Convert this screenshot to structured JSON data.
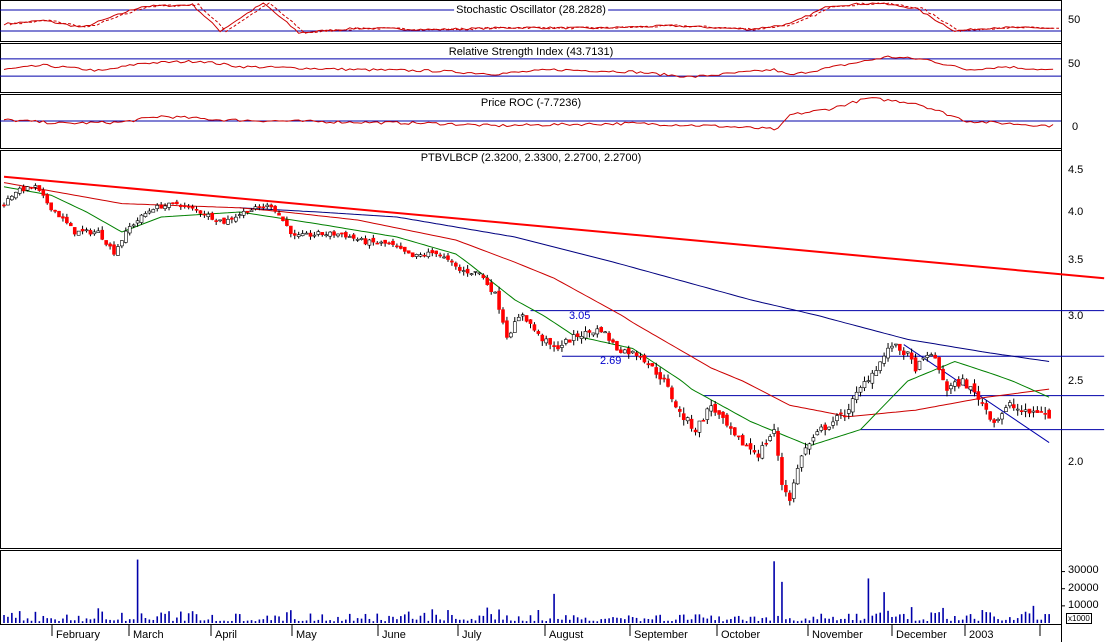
{
  "panels": {
    "stochastic": {
      "title": "Stochastic Oscillator (28.2828)",
      "ticks": [
        "50"
      ]
    },
    "rsi": {
      "title": "Relative Strength Index (43.7131)",
      "ticks": [
        "50"
      ]
    },
    "roc": {
      "title": "Price ROC (-7.7236)",
      "ticks": [
        "0"
      ]
    },
    "price": {
      "title": "PTBVLBCP (2.3200, 2.3300, 2.2700, 2.2700)",
      "ticks": [
        "4.5",
        "4.0",
        "3.5",
        "3.0",
        "2.5",
        "2.0"
      ]
    },
    "volume": {
      "ticks": [
        "30000",
        "20000",
        "10000"
      ],
      "unit": "x1000"
    }
  },
  "annotations": {
    "level_high": "3.05",
    "level_low": "2.69"
  },
  "months": [
    "February",
    "March",
    "April",
    "May",
    "June",
    "July",
    "August",
    "September",
    "October",
    "November",
    "December",
    "2003"
  ],
  "colors": {
    "up": "#ffffff",
    "down": "#ff0000",
    "wick": "#000000",
    "volume": "#0000aa",
    "ma_short": "#008000",
    "ma_mid": "#cc0000",
    "ma_long": "#000080",
    "trendline": "#ff0000",
    "level": "#0000aa",
    "indicator": "#cc0000"
  },
  "chart_data": {
    "type": "candlestick",
    "symbol": "PTBVLBCP",
    "last": {
      "open": 2.32,
      "high": 2.33,
      "low": 2.27,
      "close": 2.27
    },
    "ylim": [
      1.6,
      4.6
    ],
    "months": [
      "February",
      "March",
      "April",
      "May",
      "June",
      "July",
      "August",
      "September",
      "October",
      "November",
      "December",
      "2003"
    ],
    "close_path": [
      [
        0,
        4.1
      ],
      [
        3,
        4.25
      ],
      [
        8,
        4.3
      ],
      [
        12,
        4.05
      ],
      [
        18,
        3.8
      ],
      [
        24,
        3.8
      ],
      [
        28,
        3.6
      ],
      [
        32,
        3.85
      ],
      [
        38,
        4.05
      ],
      [
        44,
        4.1
      ],
      [
        50,
        4.0
      ],
      [
        56,
        3.9
      ],
      [
        62,
        4.02
      ],
      [
        68,
        4.08
      ],
      [
        74,
        3.75
      ],
      [
        80,
        3.78
      ],
      [
        86,
        3.78
      ],
      [
        92,
        3.7
      ],
      [
        98,
        3.68
      ],
      [
        104,
        3.55
      ],
      [
        110,
        3.6
      ],
      [
        116,
        3.42
      ],
      [
        121,
        3.4
      ],
      [
        125,
        3.2
      ],
      [
        128,
        2.85
      ],
      [
        132,
        3.02
      ],
      [
        136,
        2.85
      ],
      [
        140,
        2.75
      ],
      [
        146,
        2.85
      ],
      [
        152,
        2.9
      ],
      [
        156,
        2.75
      ],
      [
        162,
        2.7
      ],
      [
        168,
        2.5
      ],
      [
        172,
        2.3
      ],
      [
        176,
        2.2
      ],
      [
        180,
        2.35
      ],
      [
        186,
        2.15
      ],
      [
        192,
        2.05
      ],
      [
        196,
        2.2
      ],
      [
        198,
        1.85
      ],
      [
        200,
        1.75
      ],
      [
        203,
        2.05
      ],
      [
        208,
        2.2
      ],
      [
        214,
        2.3
      ],
      [
        218,
        2.45
      ],
      [
        222,
        2.6
      ],
      [
        226,
        2.78
      ],
      [
        230,
        2.7
      ],
      [
        232,
        2.6
      ],
      [
        236,
        2.72
      ],
      [
        240,
        2.45
      ],
      [
        244,
        2.5
      ],
      [
        248,
        2.4
      ],
      [
        252,
        2.25
      ],
      [
        256,
        2.35
      ],
      [
        260,
        2.3
      ],
      [
        264,
        2.32
      ],
      [
        266,
        2.27
      ]
    ],
    "ma_short": [
      [
        0,
        4.3
      ],
      [
        12,
        4.2
      ],
      [
        30,
        3.8
      ],
      [
        40,
        3.95
      ],
      [
        60,
        4.0
      ],
      [
        80,
        3.88
      ],
      [
        100,
        3.75
      ],
      [
        115,
        3.58
      ],
      [
        130,
        3.15
      ],
      [
        145,
        2.85
      ],
      [
        160,
        2.75
      ],
      [
        175,
        2.45
      ],
      [
        190,
        2.25
      ],
      [
        205,
        2.1
      ],
      [
        218,
        2.2
      ],
      [
        230,
        2.5
      ],
      [
        242,
        2.65
      ],
      [
        252,
        2.55
      ],
      [
        266,
        2.4
      ]
    ],
    "ma_mid": [
      [
        0,
        4.35
      ],
      [
        30,
        4.1
      ],
      [
        60,
        4.05
      ],
      [
        90,
        3.92
      ],
      [
        115,
        3.72
      ],
      [
        140,
        3.35
      ],
      [
        160,
        2.95
      ],
      [
        180,
        2.6
      ],
      [
        200,
        2.35
      ],
      [
        215,
        2.28
      ],
      [
        232,
        2.32
      ],
      [
        250,
        2.4
      ],
      [
        266,
        2.45
      ]
    ],
    "ma_long": [
      [
        60,
        4.05
      ],
      [
        100,
        3.95
      ],
      [
        130,
        3.75
      ],
      [
        160,
        3.45
      ],
      [
        190,
        3.15
      ],
      [
        210,
        2.98
      ],
      [
        230,
        2.82
      ],
      [
        250,
        2.72
      ],
      [
        266,
        2.65
      ]
    ],
    "trendline": [
      [
        0,
        4.42
      ],
      [
        280,
        3.35
      ]
    ],
    "levels": [
      {
        "value": 3.05,
        "from": 134,
        "to": 280,
        "label": "3.05"
      },
      {
        "value": 2.69,
        "from": 142,
        "to": 280,
        "label": "2.69"
      },
      {
        "value": 2.41,
        "from": 178,
        "to": 280
      },
      {
        "value": 2.2,
        "from": 218,
        "to": 280
      }
    ],
    "downtrend": [
      [
        229,
        2.78
      ],
      [
        266,
        2.12
      ]
    ],
    "volume_ylim": [
      0,
      42000
    ],
    "volume_spikes": [
      [
        34,
        37000
      ],
      [
        140,
        17000
      ],
      [
        196,
        36000
      ],
      [
        198,
        24000
      ],
      [
        220,
        26000
      ],
      [
        224,
        18000
      ],
      [
        262,
        10000
      ]
    ],
    "stochastic": {
      "last": 28.2828,
      "ticks": [
        50
      ],
      "ylim": [
        0,
        100
      ],
      "guides": [
        80,
        20
      ],
      "path": [
        [
          0,
          40
        ],
        [
          10,
          50
        ],
        [
          20,
          30
        ],
        [
          35,
          90
        ],
        [
          48,
          95
        ],
        [
          55,
          20
        ],
        [
          66,
          100
        ],
        [
          75,
          15
        ],
        [
          90,
          28
        ],
        [
          110,
          24
        ],
        [
          130,
          30
        ],
        [
          150,
          28
        ],
        [
          170,
          35
        ],
        [
          190,
          25
        ],
        [
          200,
          40
        ],
        [
          210,
          92
        ],
        [
          222,
          100
        ],
        [
          232,
          85
        ],
        [
          242,
          20
        ],
        [
          252,
          30
        ],
        [
          266,
          28
        ]
      ]
    },
    "rsi": {
      "last": 43.7131,
      "ticks": [
        50
      ],
      "ylim": [
        0,
        100
      ],
      "guides": [
        70,
        30
      ],
      "path": [
        [
          0,
          45
        ],
        [
          10,
          55
        ],
        [
          25,
          42
        ],
        [
          35,
          60
        ],
        [
          50,
          65
        ],
        [
          60,
          52
        ],
        [
          70,
          50
        ],
        [
          90,
          45
        ],
        [
          110,
          42
        ],
        [
          125,
          35
        ],
        [
          140,
          45
        ],
        [
          160,
          40
        ],
        [
          175,
          28
        ],
        [
          196,
          45
        ],
        [
          200,
          32
        ],
        [
          215,
          58
        ],
        [
          225,
          75
        ],
        [
          235,
          68
        ],
        [
          245,
          45
        ],
        [
          255,
          52
        ],
        [
          266,
          44
        ]
      ]
    },
    "roc": {
      "last": -7.7236,
      "ticks": [
        0
      ],
      "ylim": [
        -40,
        40
      ],
      "guides": [
        0
      ],
      "path": [
        [
          0,
          2
        ],
        [
          15,
          -4
        ],
        [
          30,
          -2
        ],
        [
          40,
          8
        ],
        [
          55,
          2
        ],
        [
          70,
          0
        ],
        [
          90,
          -2
        ],
        [
          110,
          -4
        ],
        [
          125,
          -8
        ],
        [
          140,
          -6
        ],
        [
          160,
          -4
        ],
        [
          180,
          -8
        ],
        [
          197,
          -14
        ],
        [
          200,
          10
        ],
        [
          210,
          20
        ],
        [
          220,
          38
        ],
        [
          232,
          30
        ],
        [
          245,
          0
        ],
        [
          255,
          -4
        ],
        [
          266,
          -8
        ]
      ]
    }
  }
}
